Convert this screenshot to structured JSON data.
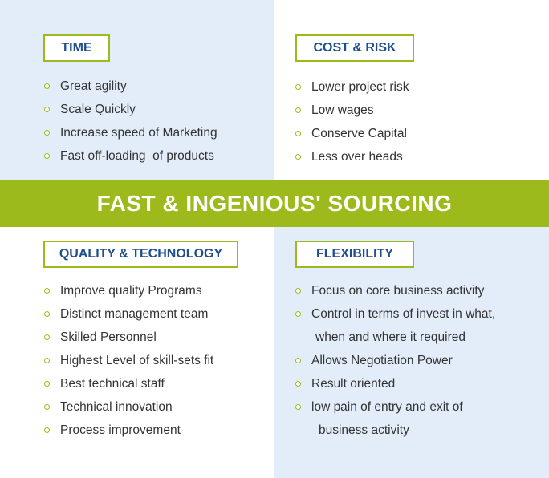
{
  "banner": "FAST & INGENIOUS' SOURCING",
  "quadrants": {
    "time": {
      "title": "TIME",
      "items": [
        "Great agility",
        "Scale Quickly",
        "Increase speed of Marketing",
        "Fast off-loading  of products"
      ]
    },
    "cost_risk": {
      "title": "COST & RISK",
      "items": [
        "Lower project risk",
        "Low wages",
        "Conserve Capital",
        "Less over heads"
      ]
    },
    "quality_technology": {
      "title": "QUALITY & TECHNOLOGY",
      "items": [
        "Improve quality Programs",
        "Distinct management team",
        "Skilled Personnel",
        "Highest Level of skill-sets fit",
        "Best technical staff",
        "Technical innovation",
        "Process improvement"
      ]
    },
    "flexibility": {
      "title": "FLEXIBILITY",
      "items": [
        "Focus on core business activity",
        "Control in terms of invest in what,",
        "when and where it required",
        "Allows Negotiation Power",
        "Result oriented",
        "low pain of entry and exit of",
        "business activity"
      ]
    }
  }
}
